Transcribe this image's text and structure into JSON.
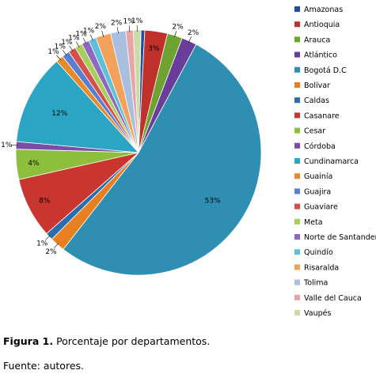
{
  "chart_data": {
    "type": "pie",
    "categories": [
      "Amazonas",
      "Antioquia",
      "Arauca",
      "Atlántico",
      "Bogotá D.C",
      "Bolívar",
      "Caldas",
      "Casanare",
      "Cesar",
      "Córdoba",
      "Cundinamarca",
      "Guainía",
      "Guajira",
      "Guaviare",
      "Meta",
      "Norte de Santander",
      "Quindío",
      "Risaralda",
      "Tolima",
      "Valle del Cauca",
      "Vaupés"
    ],
    "values": [
      0.5,
      3,
      2,
      2,
      53,
      2,
      1,
      8,
      4,
      1,
      12,
      1,
      1,
      1,
      1,
      1,
      1,
      2,
      2,
      1,
      1
    ],
    "labels": [
      "",
      "3%",
      "2%",
      "2%",
      "53%",
      "2%",
      "1%",
      "8%",
      "4%",
      "1%",
      "12%",
      "1%",
      "1%",
      "1%",
      "1%",
      "1%",
      "1%",
      "2%",
      "2%",
      "1%",
      "1%"
    ],
    "colors": [
      "#1f4e9e",
      "#c0312c",
      "#6fa331",
      "#6a3d9a",
      "#2f8fb3",
      "#e88021",
      "#2a6ead",
      "#c9362f",
      "#8dbf3c",
      "#7a4ea6",
      "#2aa5c4",
      "#e88a2a",
      "#5a7fd0",
      "#d4504a",
      "#a8cf5e",
      "#8d68c0",
      "#5fc0dc",
      "#f2a25a",
      "#a9bfe0",
      "#e7a6a4",
      "#c9dcaa"
    ],
    "legend_position": "right"
  },
  "caption": {
    "label": "Figura 1.",
    "text": "Porcentaje por departamentos."
  },
  "source": "Fuente: autores."
}
